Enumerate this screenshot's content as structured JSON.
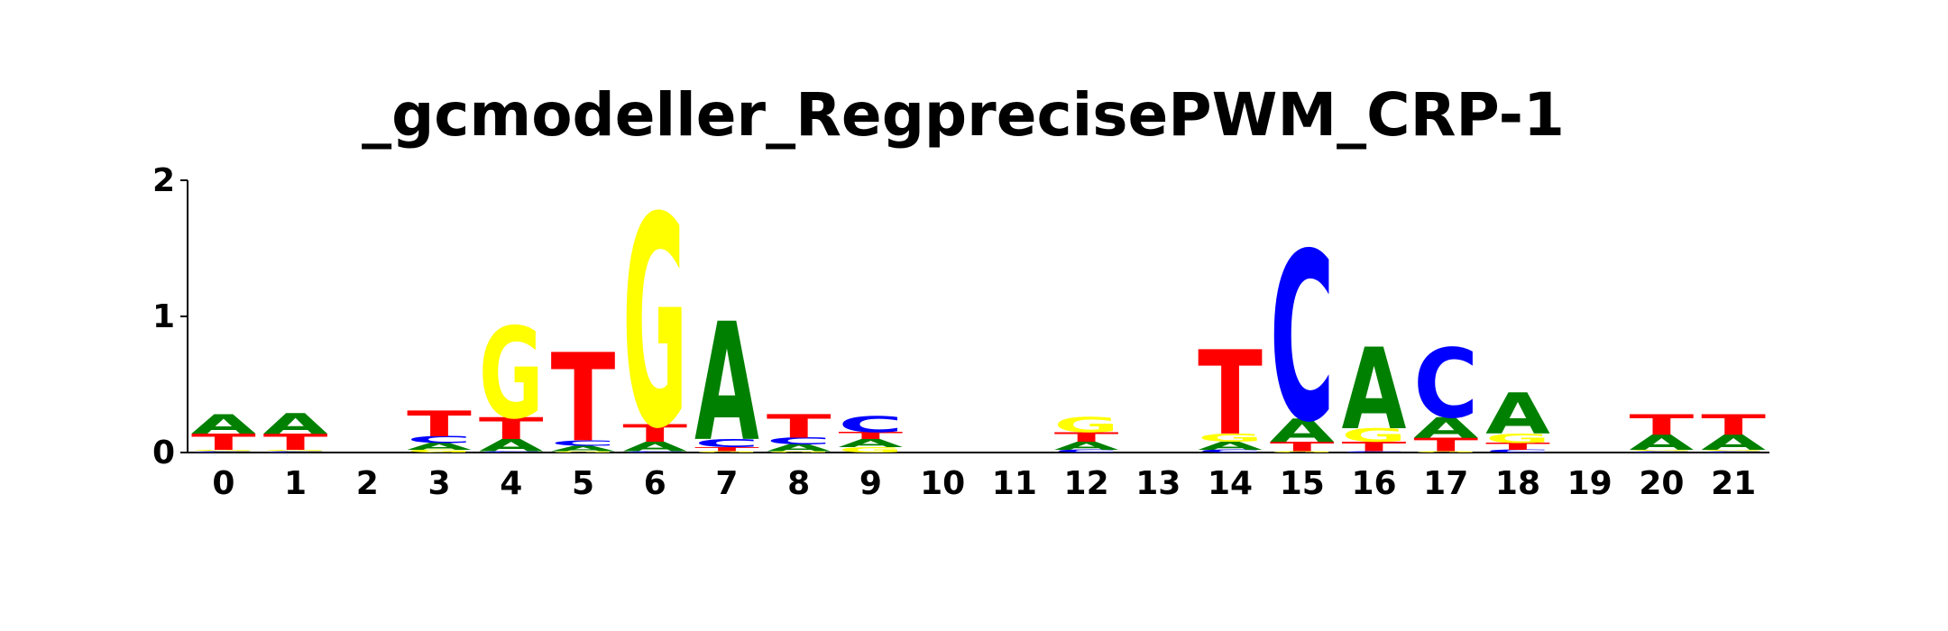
{
  "chart_data": {
    "type": "sequence-logo",
    "title": "_gcmodeller_RegprecisePWM_CRP-1",
    "xlabel": "",
    "ylabel": "",
    "ylim": [
      0,
      2
    ],
    "yticks": [
      0,
      1,
      2
    ],
    "letter_colors": {
      "A": "#008000",
      "C": "#0000ff",
      "G": "#ffff00",
      "T": "#ff0000"
    },
    "positions": [
      {
        "label": "0",
        "stack": [
          {
            "base": "C",
            "height": 0.01
          },
          {
            "base": "G",
            "height": 0.01
          },
          {
            "base": "T",
            "height": 0.12
          },
          {
            "base": "A",
            "height": 0.14
          }
        ]
      },
      {
        "label": "1",
        "stack": [
          {
            "base": "C",
            "height": 0.01
          },
          {
            "base": "G",
            "height": 0.01
          },
          {
            "base": "T",
            "height": 0.12
          },
          {
            "base": "A",
            "height": 0.15
          }
        ]
      },
      {
        "label": "2",
        "stack": []
      },
      {
        "label": "3",
        "stack": [
          {
            "base": "G",
            "height": 0.02
          },
          {
            "base": "A",
            "height": 0.05
          },
          {
            "base": "C",
            "height": 0.05
          },
          {
            "base": "T",
            "height": 0.19
          }
        ]
      },
      {
        "label": "4",
        "stack": [
          {
            "base": "C",
            "height": 0.01
          },
          {
            "base": "A",
            "height": 0.09
          },
          {
            "base": "T",
            "height": 0.16
          },
          {
            "base": "G",
            "height": 0.67
          }
        ]
      },
      {
        "label": "5",
        "stack": [
          {
            "base": "G",
            "height": 0.01
          },
          {
            "base": "A",
            "height": 0.04
          },
          {
            "base": "C",
            "height": 0.04
          },
          {
            "base": "T",
            "height": 0.65
          }
        ]
      },
      {
        "label": "6",
        "stack": [
          {
            "base": "C",
            "height": 0.01
          },
          {
            "base": "A",
            "height": 0.07
          },
          {
            "base": "T",
            "height": 0.13
          },
          {
            "base": "G",
            "height": 1.55
          }
        ]
      },
      {
        "label": "7",
        "stack": [
          {
            "base": "G",
            "height": 0.01
          },
          {
            "base": "T",
            "height": 0.03
          },
          {
            "base": "C",
            "height": 0.06
          },
          {
            "base": "A",
            "height": 0.87
          }
        ]
      },
      {
        "label": "8",
        "stack": [
          {
            "base": "G",
            "height": 0.01
          },
          {
            "base": "A",
            "height": 0.05
          },
          {
            "base": "C",
            "height": 0.05
          },
          {
            "base": "T",
            "height": 0.17
          }
        ]
      },
      {
        "label": "9",
        "stack": [
          {
            "base": "G",
            "height": 0.04
          },
          {
            "base": "A",
            "height": 0.06
          },
          {
            "base": "T",
            "height": 0.05
          },
          {
            "base": "C",
            "height": 0.12
          }
        ]
      },
      {
        "label": "10",
        "stack": []
      },
      {
        "label": "11",
        "stack": []
      },
      {
        "label": "12",
        "stack": [
          {
            "base": "C",
            "height": 0.02
          },
          {
            "base": "A",
            "height": 0.06
          },
          {
            "base": "T",
            "height": 0.07
          },
          {
            "base": "G",
            "height": 0.11
          }
        ]
      },
      {
        "label": "13",
        "stack": []
      },
      {
        "label": "14",
        "stack": [
          {
            "base": "C",
            "height": 0.02
          },
          {
            "base": "A",
            "height": 0.06
          },
          {
            "base": "G",
            "height": 0.06
          },
          {
            "base": "T",
            "height": 0.62
          }
        ]
      },
      {
        "label": "15",
        "stack": [
          {
            "base": "G",
            "height": 0.01
          },
          {
            "base": "T",
            "height": 0.07
          },
          {
            "base": "A",
            "height": 0.17
          },
          {
            "base": "C",
            "height": 1.24
          }
        ]
      },
      {
        "label": "16",
        "stack": [
          {
            "base": "C",
            "height": 0.01
          },
          {
            "base": "T",
            "height": 0.07
          },
          {
            "base": "G",
            "height": 0.1
          },
          {
            "base": "A",
            "height": 0.6
          }
        ]
      },
      {
        "label": "17",
        "stack": [
          {
            "base": "G",
            "height": 0.01
          },
          {
            "base": "T",
            "height": 0.1
          },
          {
            "base": "A",
            "height": 0.15
          },
          {
            "base": "C",
            "height": 0.51
          }
        ]
      },
      {
        "label": "18",
        "stack": [
          {
            "base": "C",
            "height": 0.02
          },
          {
            "base": "T",
            "height": 0.05
          },
          {
            "base": "G",
            "height": 0.07
          },
          {
            "base": "A",
            "height": 0.3
          }
        ]
      },
      {
        "label": "19",
        "stack": []
      },
      {
        "label": "20",
        "stack": [
          {
            "base": "C",
            "height": 0.01
          },
          {
            "base": "G",
            "height": 0.01
          },
          {
            "base": "A",
            "height": 0.11
          },
          {
            "base": "T",
            "height": 0.15
          }
        ]
      },
      {
        "label": "21",
        "stack": [
          {
            "base": "C",
            "height": 0.01
          },
          {
            "base": "G",
            "height": 0.01
          },
          {
            "base": "A",
            "height": 0.11
          },
          {
            "base": "T",
            "height": 0.15
          }
        ]
      }
    ]
  }
}
